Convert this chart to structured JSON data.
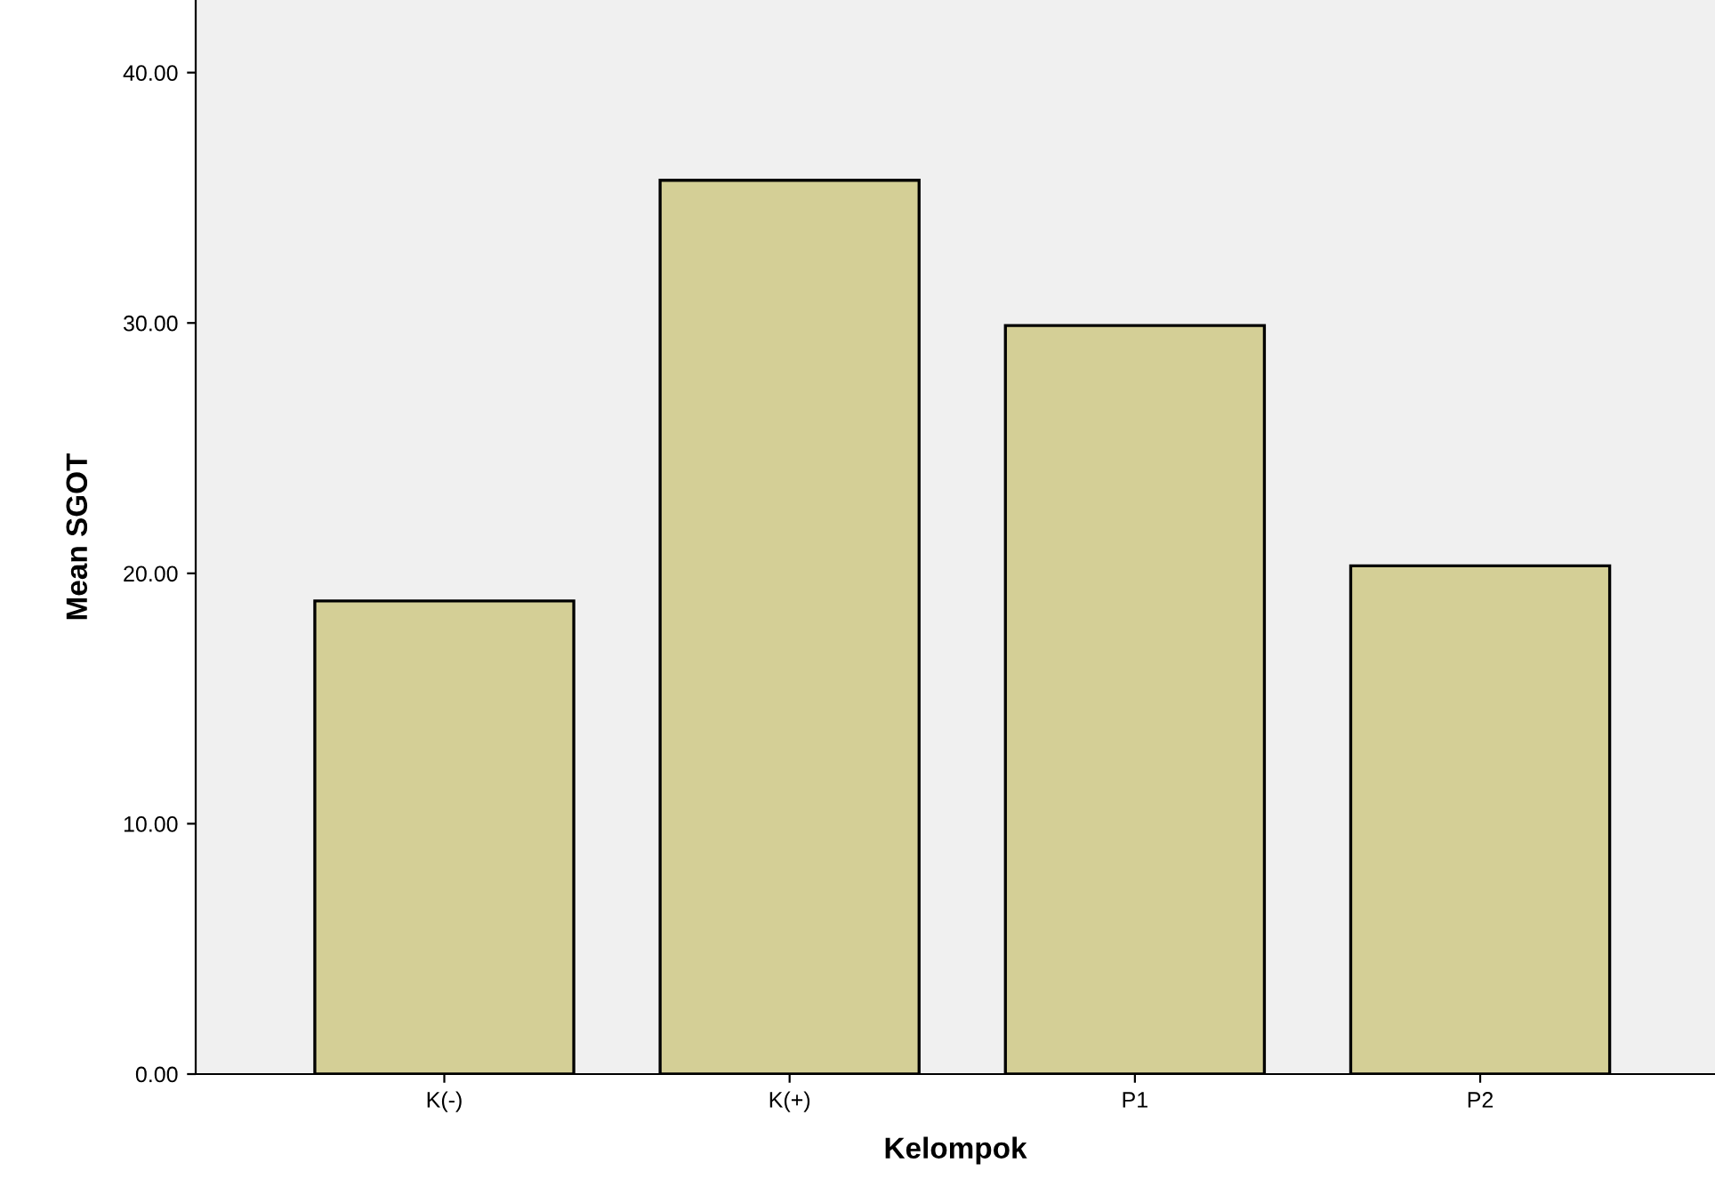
{
  "chart_data": {
    "type": "bar",
    "xlabel": "Kelompok",
    "ylabel": "Mean SGOT",
    "categories": [
      "K(-)",
      "K(+)",
      "P1",
      "P2"
    ],
    "values": [
      18.9,
      35.7,
      29.9,
      20.3
    ],
    "color": "#d4cf96",
    "ylim": [
      0,
      42.9
    ],
    "yticks": [
      {
        "value": 0,
        "label": "0.00"
      },
      {
        "value": 10,
        "label": "10.00"
      },
      {
        "value": 20,
        "label": "20.00"
      },
      {
        "value": 30,
        "label": "30.00"
      },
      {
        "value": 40,
        "label": "40.00"
      }
    ],
    "grid": false
  }
}
